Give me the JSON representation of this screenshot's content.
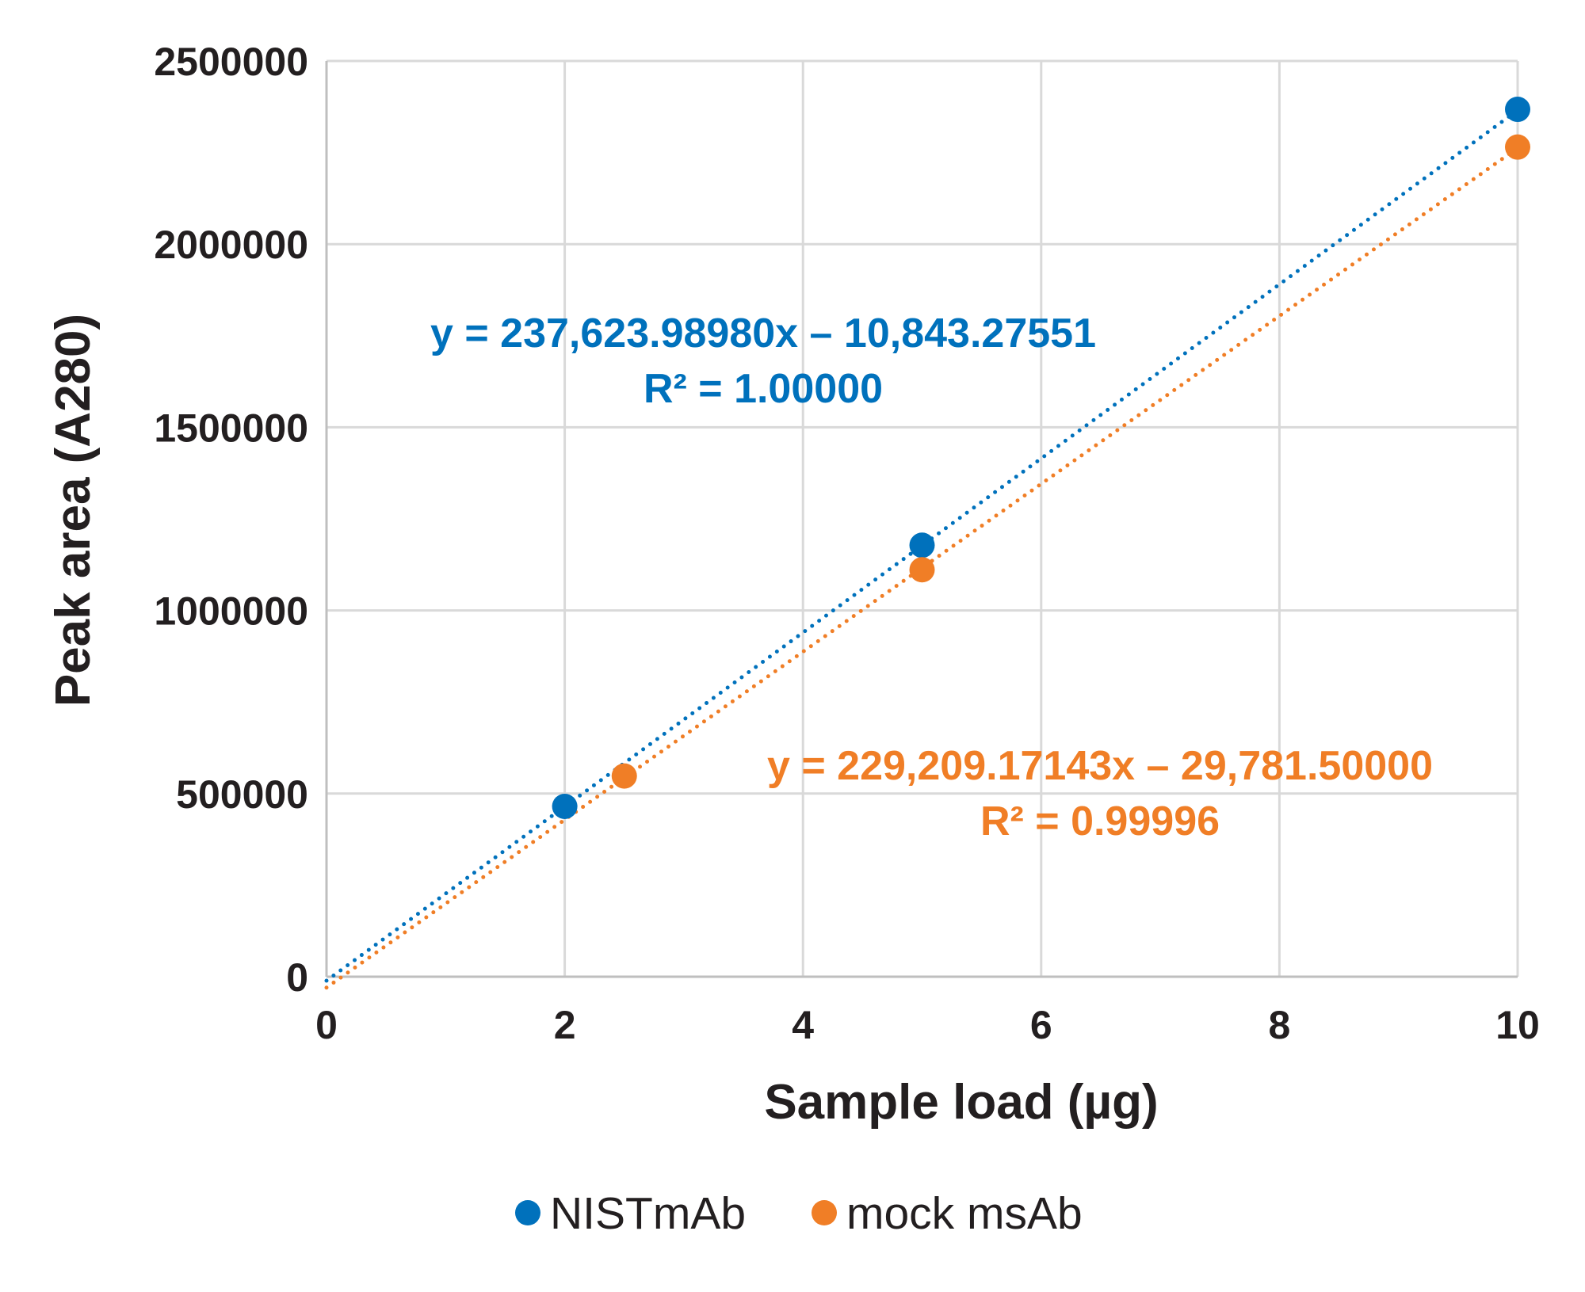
{
  "chart_data": {
    "type": "scatter",
    "title": "",
    "xlabel": "Sample load (µg)",
    "ylabel": "Peak area (A280)",
    "xlim": [
      0,
      10
    ],
    "ylim": [
      0,
      2500000
    ],
    "xticks": [
      "0",
      "2",
      "4",
      "6",
      "8",
      "10"
    ],
    "yticks": [
      "0",
      "500000",
      "1000000",
      "1500000",
      "2000000",
      "2500000"
    ],
    "grid": true,
    "legend_position": "bottom",
    "series": [
      {
        "name": "NISTmAb",
        "color": "#0071bc",
        "x": [
          2,
          5,
          10
        ],
        "y": [
          465000,
          1178000,
          2368000
        ],
        "trendline": {
          "slope": 237623.9898,
          "intercept": -10843.27551,
          "style": "dotted"
        },
        "equation": "y = 237,623.98980x – 10,843.27551",
        "r2": "R² = 1.00000"
      },
      {
        "name": "mock msAb",
        "color": "#f07e26",
        "x": [
          2.5,
          5,
          10
        ],
        "y": [
          548000,
          1111000,
          2265000
        ],
        "trendline": {
          "slope": 229209.17143,
          "intercept": -29781.5,
          "style": "dotted"
        },
        "equation": "y = 229,209.17143x – 29,781.50000",
        "r2": "R² = 0.99996"
      }
    ]
  }
}
